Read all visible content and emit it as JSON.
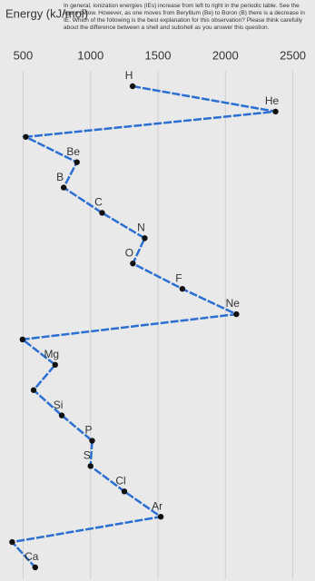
{
  "question": "In general, ionization energies (IEs) increase from left to right in the periodic table. See the figure below. However, as one moves from Beryllium (Be) to Boron (B) there is a decrease in IE. Which of the following is the best explanation for this observation? Please think carefully about the difference between a shell and subshell as you answer this question.",
  "chart_data": {
    "type": "line",
    "ylabel": "Energy (kJ/mol)",
    "categories": [
      "H",
      "He",
      null,
      "Be",
      "B",
      "C",
      "N",
      "O",
      "F",
      "Ne",
      null,
      "Mg",
      null,
      "Si",
      "P",
      "S",
      "Cl",
      "Ar",
      null,
      "Ca"
    ],
    "values": [
      1312,
      2372,
      520,
      899,
      801,
      1086,
      1402,
      1314,
      1681,
      2081,
      496,
      738,
      578,
      787,
      1012,
      1000,
      1251,
      1521,
      419,
      590
    ],
    "color": "#2a6fd1",
    "marker_color": "#111111",
    "ylim": [
      450,
      2550
    ],
    "yticks": [
      500,
      1000,
      1500,
      2000,
      2500
    ],
    "grid": true
  }
}
